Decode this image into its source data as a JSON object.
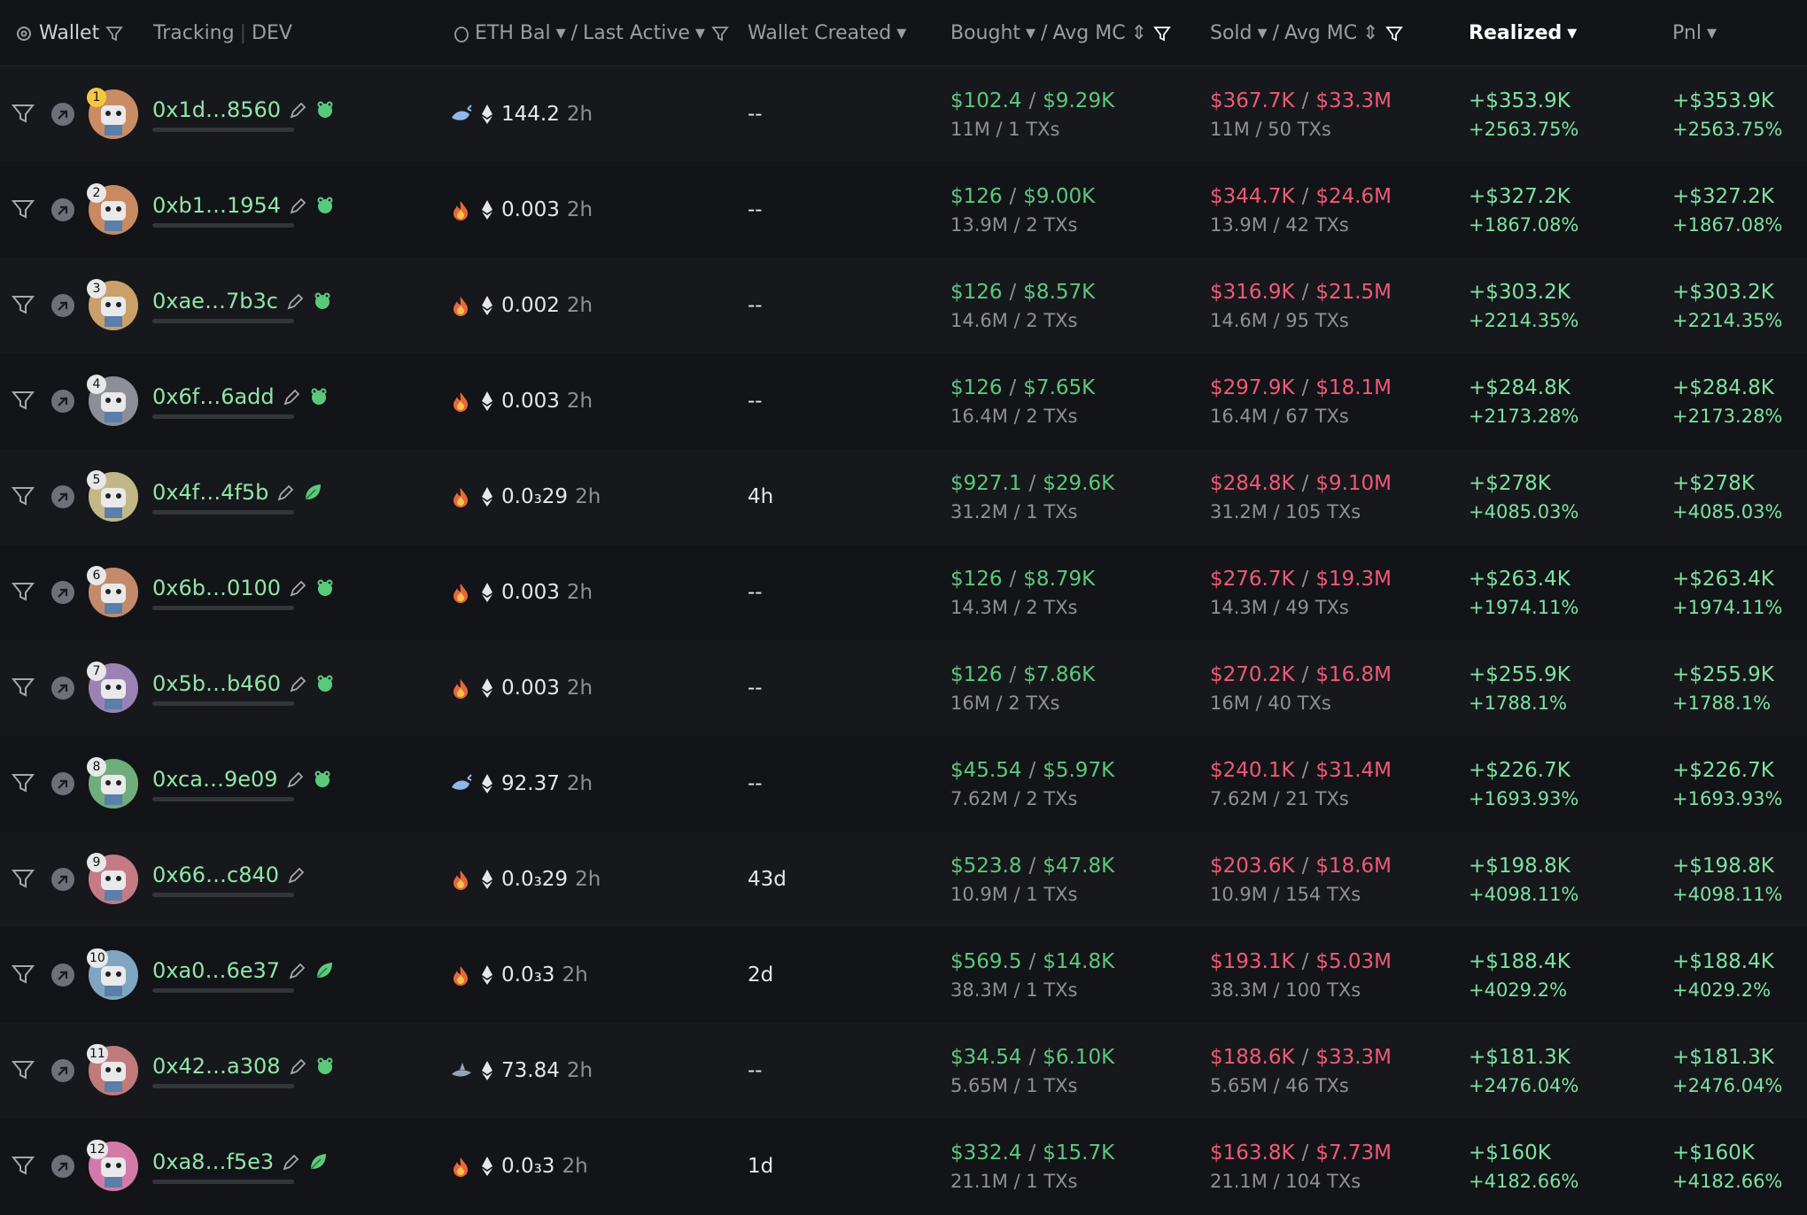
{
  "header": {
    "wallet": "Wallet",
    "tracking": "Tracking",
    "dev": "DEV",
    "eth_bal": "ETH Bal",
    "separator": "/",
    "last_active": "Last Active",
    "wallet_created": "Wallet Created",
    "bought": "Bought",
    "bought_avg_mc": "Avg MC",
    "sold": "Sold",
    "sold_avg_mc": "Avg MC",
    "realized": "Realized",
    "pnl": "Pnl"
  },
  "rows": [
    {
      "rank": "1",
      "address": "0x1d…8560",
      "tag": "frog",
      "badge": "whale",
      "eth_bal": "144.2",
      "last_active": "2h",
      "wallet_created": "--",
      "bought": "$102.4",
      "bought_avg_mc": "$9.29K",
      "bought_detail": "11M / 1 TXs",
      "sold": "$367.7K",
      "sold_avg_mc": "$33.3M",
      "sold_detail": "11M / 50 TXs",
      "realized": "+$353.9K",
      "realized_pct": "+2563.75%",
      "pnl": "+$353.9K",
      "pnl_pct": "+2563.75%"
    },
    {
      "rank": "2",
      "address": "0xb1…1954",
      "tag": "frog",
      "badge": "fire",
      "eth_bal": "0.003",
      "last_active": "2h",
      "wallet_created": "--",
      "bought": "$126",
      "bought_avg_mc": "$9.00K",
      "bought_detail": "13.9M / 2 TXs",
      "sold": "$344.7K",
      "sold_avg_mc": "$24.6M",
      "sold_detail": "13.9M / 42 TXs",
      "realized": "+$327.2K",
      "realized_pct": "+1867.08%",
      "pnl": "+$327.2K",
      "pnl_pct": "+1867.08%"
    },
    {
      "rank": "3",
      "address": "0xae…7b3c",
      "tag": "frog",
      "badge": "fire",
      "eth_bal": "0.002",
      "last_active": "2h",
      "wallet_created": "--",
      "bought": "$126",
      "bought_avg_mc": "$8.57K",
      "bought_detail": "14.6M / 2 TXs",
      "sold": "$316.9K",
      "sold_avg_mc": "$21.5M",
      "sold_detail": "14.6M / 95 TXs",
      "realized": "+$303.2K",
      "realized_pct": "+2214.35%",
      "pnl": "+$303.2K",
      "pnl_pct": "+2214.35%"
    },
    {
      "rank": "4",
      "address": "0x6f…6add",
      "tag": "frog",
      "badge": "fire",
      "eth_bal": "0.003",
      "last_active": "2h",
      "wallet_created": "--",
      "bought": "$126",
      "bought_avg_mc": "$7.65K",
      "bought_detail": "16.4M / 2 TXs",
      "sold": "$297.9K",
      "sold_avg_mc": "$18.1M",
      "sold_detail": "16.4M / 67 TXs",
      "realized": "+$284.8K",
      "realized_pct": "+2173.28%",
      "pnl": "+$284.8K",
      "pnl_pct": "+2173.28%"
    },
    {
      "rank": "5",
      "address": "0x4f…4f5b",
      "tag": "leaf",
      "badge": "fire",
      "eth_bal": "0.0₃29",
      "last_active": "2h",
      "wallet_created": "4h",
      "bought": "$927.1",
      "bought_avg_mc": "$29.6K",
      "bought_detail": "31.2M / 1 TXs",
      "sold": "$284.8K",
      "sold_avg_mc": "$9.10M",
      "sold_detail": "31.2M / 105 TXs",
      "realized": "+$278K",
      "realized_pct": "+4085.03%",
      "pnl": "+$278K",
      "pnl_pct": "+4085.03%"
    },
    {
      "rank": "6",
      "address": "0x6b…0100",
      "tag": "frog",
      "badge": "fire",
      "eth_bal": "0.003",
      "last_active": "2h",
      "wallet_created": "--",
      "bought": "$126",
      "bought_avg_mc": "$8.79K",
      "bought_detail": "14.3M / 2 TXs",
      "sold": "$276.7K",
      "sold_avg_mc": "$19.3M",
      "sold_detail": "14.3M / 49 TXs",
      "realized": "+$263.4K",
      "realized_pct": "+1974.11%",
      "pnl": "+$263.4K",
      "pnl_pct": "+1974.11%"
    },
    {
      "rank": "7",
      "address": "0x5b…b460",
      "tag": "frog",
      "badge": "fire",
      "eth_bal": "0.003",
      "last_active": "2h",
      "wallet_created": "--",
      "bought": "$126",
      "bought_avg_mc": "$7.86K",
      "bought_detail": "16M / 2 TXs",
      "sold": "$270.2K",
      "sold_avg_mc": "$16.8M",
      "sold_detail": "16M / 40 TXs",
      "realized": "+$255.9K",
      "realized_pct": "+1788.1%",
      "pnl": "+$255.9K",
      "pnl_pct": "+1788.1%"
    },
    {
      "rank": "8",
      "address": "0xca…9e09",
      "tag": "frog",
      "badge": "whale",
      "eth_bal": "92.37",
      "last_active": "2h",
      "wallet_created": "--",
      "bought": "$45.54",
      "bought_avg_mc": "$5.97K",
      "bought_detail": "7.62M / 2 TXs",
      "sold": "$240.1K",
      "sold_avg_mc": "$31.4M",
      "sold_detail": "7.62M / 21 TXs",
      "realized": "+$226.7K",
      "realized_pct": "+1693.93%",
      "pnl": "+$226.7K",
      "pnl_pct": "+1693.93%"
    },
    {
      "rank": "9",
      "address": "0x66…c840",
      "badge": "fire",
      "eth_bal": "0.0₃29",
      "last_active": "2h",
      "wallet_created": "43d",
      "bought": "$523.8",
      "bought_avg_mc": "$47.8K",
      "bought_detail": "10.9M / 1 TXs",
      "sold": "$203.6K",
      "sold_avg_mc": "$18.6M",
      "sold_detail": "10.9M / 154 TXs",
      "realized": "+$198.8K",
      "realized_pct": "+4098.11%",
      "pnl": "+$198.8K",
      "pnl_pct": "+4098.11%"
    },
    {
      "rank": "10",
      "address": "0xa0…6e37",
      "tag": "leaf",
      "badge": "fire",
      "eth_bal": "0.0₃3",
      "last_active": "2h",
      "wallet_created": "2d",
      "bought": "$569.5",
      "bought_avg_mc": "$14.8K",
      "bought_detail": "38.3M / 1 TXs",
      "sold": "$193.1K",
      "sold_avg_mc": "$5.03M",
      "sold_detail": "38.3M / 100 TXs",
      "realized": "+$188.4K",
      "realized_pct": "+4029.2%",
      "pnl": "+$188.4K",
      "pnl_pct": "+4029.2%"
    },
    {
      "rank": "11",
      "address": "0x42…a308",
      "tag": "frog",
      "badge": "shark",
      "eth_bal": "73.84",
      "last_active": "2h",
      "wallet_created": "--",
      "bought": "$34.54",
      "bought_avg_mc": "$6.10K",
      "bought_detail": "5.65M / 1 TXs",
      "sold": "$188.6K",
      "sold_avg_mc": "$33.3M",
      "sold_detail": "5.65M / 46 TXs",
      "realized": "+$181.3K",
      "realized_pct": "+2476.04%",
      "pnl": "+$181.3K",
      "pnl_pct": "+2476.04%"
    },
    {
      "rank": "12",
      "address": "0xa8…f5e3",
      "tag": "leaf",
      "badge": "fire",
      "eth_bal": "0.0₃3",
      "last_active": "2h",
      "wallet_created": "1d",
      "bought": "$332.4",
      "bought_avg_mc": "$15.7K",
      "bought_detail": "21.1M / 1 TXs",
      "sold": "$163.8K",
      "sold_avg_mc": "$7.73M",
      "sold_detail": "21.1M / 104 TXs",
      "realized": "+$160K",
      "realized_pct": "+4182.66%",
      "pnl": "+$160K",
      "pnl_pct": "+4182.66%"
    }
  ]
}
